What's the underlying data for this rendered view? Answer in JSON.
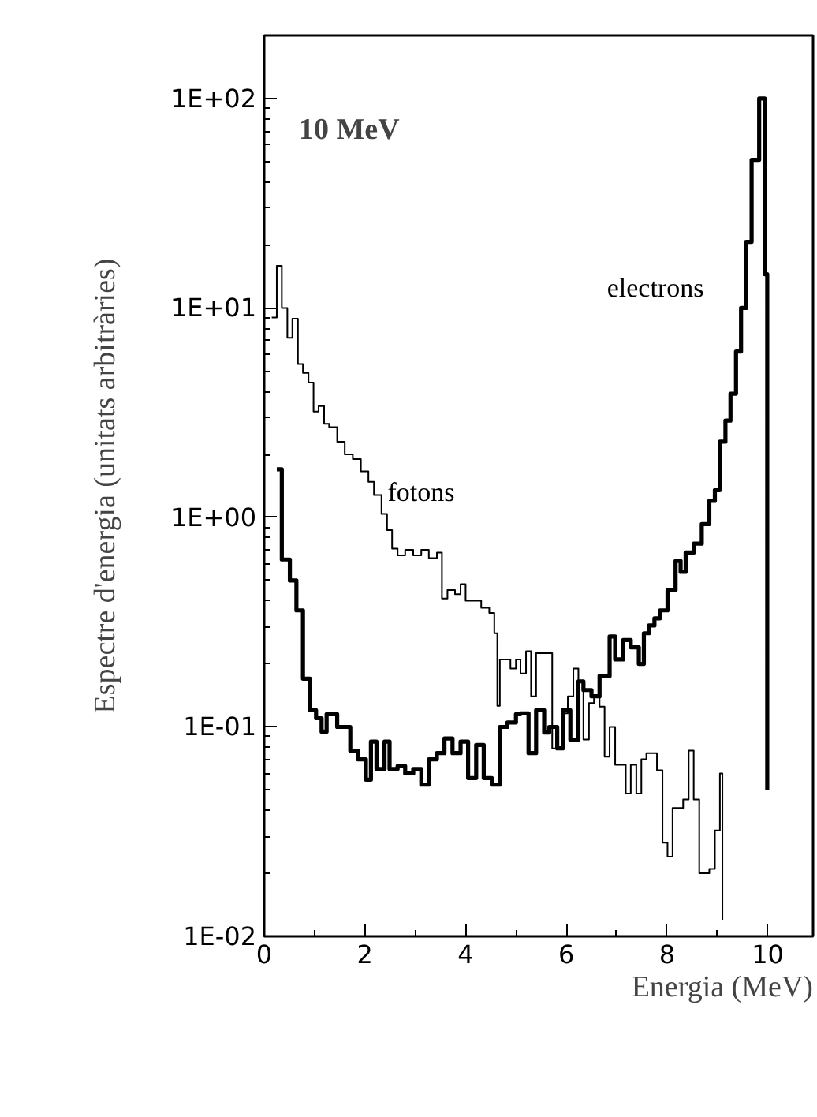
{
  "chart_data": {
    "type": "step",
    "ylabel": "Espectre d'energia (unitats arbitràries)",
    "xlabel": "Energia (MeV)",
    "annotations": [
      "10 MeV"
    ],
    "log": "y",
    "grid": false,
    "xlim": [
      0,
      10.9
    ],
    "ylim": [
      0.01,
      200
    ],
    "xticks": [
      0,
      {
        "value": 1,
        "label": null
      },
      2,
      {
        "value": 3,
        "label": null
      },
      4,
      {
        "value": 5,
        "label": null
      },
      6,
      {
        "value": 7,
        "label": null
      },
      8,
      {
        "value": 9,
        "label": null
      },
      10
    ],
    "yticks": [
      {
        "value": 0.01,
        "label": "1E-02"
      },
      {
        "value": 0.02,
        "label": null
      },
      {
        "value": 0.03,
        "label": null
      },
      {
        "value": 0.04,
        "label": null
      },
      {
        "value": 0.05,
        "label": null
      },
      {
        "value": 0.06,
        "label": null
      },
      {
        "value": 0.07,
        "label": null
      },
      {
        "value": 0.08,
        "label": null
      },
      {
        "value": 0.09,
        "label": null
      },
      {
        "value": 0.1,
        "label": "1E-01"
      },
      {
        "value": 0.2,
        "label": null
      },
      {
        "value": 0.3,
        "label": null
      },
      {
        "value": 0.4,
        "label": null
      },
      {
        "value": 0.5,
        "label": null
      },
      {
        "value": 0.6,
        "label": null
      },
      {
        "value": 0.7,
        "label": null
      },
      {
        "value": 0.8,
        "label": null
      },
      {
        "value": 0.9,
        "label": null
      },
      {
        "value": 1,
        "label": "1E+00"
      },
      {
        "value": 2,
        "label": null
      },
      {
        "value": 3,
        "label": null
      },
      {
        "value": 4,
        "label": null
      },
      {
        "value": 5,
        "label": null
      },
      {
        "value": 6,
        "label": null
      },
      {
        "value": 7,
        "label": null
      },
      {
        "value": 8,
        "label": null
      },
      {
        "value": 9,
        "label": null
      },
      {
        "value": 10,
        "label": "1E+01"
      },
      {
        "value": 20,
        "label": null
      },
      {
        "value": 30,
        "label": null
      },
      {
        "value": 40,
        "label": null
      },
      {
        "value": 50,
        "label": null
      },
      {
        "value": 60,
        "label": null
      },
      {
        "value": 70,
        "label": null
      },
      {
        "value": 80,
        "label": null
      },
      {
        "value": 90,
        "label": null
      },
      {
        "value": 100,
        "label": "1E+02"
      }
    ],
    "series": [
      {
        "name": "electrons",
        "color": "#000000",
        "x": [
          0.25,
          0.35,
          0.51,
          0.64,
          0.77,
          0.91,
          1.03,
          1.14,
          1.24,
          1.45,
          1.71,
          1.86,
          2.02,
          2.12,
          2.23,
          2.39,
          2.49,
          2.65,
          2.8,
          2.96,
          3.12,
          3.27,
          3.43,
          3.58,
          3.74,
          3.9,
          4.05,
          4.21,
          4.36,
          4.52,
          4.68,
          4.83,
          5.0,
          5.09,
          5.25,
          5.4,
          5.56,
          5.66,
          5.82,
          5.93,
          6.08,
          6.24,
          6.34,
          6.5,
          6.66,
          6.86,
          6.97,
          7.13,
          7.28,
          7.44,
          7.54,
          7.64,
          7.75,
          7.86,
          8.01,
          8.17,
          8.27,
          8.37,
          8.53,
          8.69,
          8.84,
          8.95,
          9.05,
          9.16,
          9.26,
          9.37,
          9.47,
          9.57,
          9.68,
          9.83,
          9.94,
          9.99
        ],
        "values": [
          1.7,
          0.63,
          0.5,
          0.36,
          0.17,
          0.12,
          0.11,
          0.095,
          0.115,
          0.1,
          0.077,
          0.07,
          0.056,
          0.085,
          0.063,
          0.085,
          0.063,
          0.065,
          0.06,
          0.063,
          0.053,
          0.07,
          0.075,
          0.088,
          0.075,
          0.085,
          0.057,
          0.082,
          0.057,
          0.053,
          0.1,
          0.105,
          0.115,
          0.116,
          0.075,
          0.12,
          0.094,
          0.1,
          0.079,
          0.12,
          0.087,
          0.165,
          0.15,
          0.14,
          0.175,
          0.27,
          0.21,
          0.26,
          0.24,
          0.2,
          0.28,
          0.305,
          0.33,
          0.36,
          0.45,
          0.62,
          0.55,
          0.68,
          0.75,
          0.93,
          1.2,
          1.35,
          2.3,
          2.9,
          3.9,
          6.2,
          10,
          20.7,
          51,
          100,
          14.5,
          0.05
        ]
      },
      {
        "name": "fotons",
        "color": "#000000",
        "x": [
          0.15,
          0.25,
          0.35,
          0.46,
          0.56,
          0.67,
          0.77,
          0.88,
          0.98,
          1.08,
          1.19,
          1.29,
          1.45,
          1.6,
          1.76,
          1.92,
          2.07,
          2.18,
          2.33,
          2.44,
          2.54,
          2.65,
          2.8,
          2.96,
          3.12,
          3.27,
          3.43,
          3.53,
          3.64,
          3.79,
          3.9,
          4.0,
          4.31,
          4.47,
          4.57,
          4.63,
          4.68,
          4.89,
          5.0,
          5.09,
          5.2,
          5.3,
          5.4,
          5.72,
          5.93,
          6.03,
          6.14,
          6.24,
          6.34,
          6.45,
          6.55,
          6.66,
          6.76,
          6.86,
          6.97,
          7.18,
          7.28,
          7.39,
          7.49,
          7.59,
          7.8,
          7.91,
          8.01,
          8.11,
          8.32,
          8.43,
          8.53,
          8.64,
          8.84,
          8.95,
          9.05,
          9.1
        ],
        "values": [
          9.0,
          15.9,
          10,
          7.2,
          8.9,
          5.4,
          4.9,
          4.4,
          3.2,
          3.4,
          2.8,
          2.7,
          2.3,
          2.0,
          1.9,
          1.66,
          1.48,
          1.28,
          1.04,
          0.87,
          0.71,
          0.66,
          0.7,
          0.66,
          0.7,
          0.64,
          0.68,
          0.41,
          0.45,
          0.43,
          0.48,
          0.4,
          0.37,
          0.35,
          0.28,
          0.126,
          0.21,
          0.19,
          0.21,
          0.18,
          0.23,
          0.14,
          0.225,
          0.079,
          0.116,
          0.14,
          0.19,
          0.165,
          0.087,
          0.13,
          0.14,
          0.125,
          0.072,
          0.1,
          0.066,
          0.048,
          0.066,
          0.048,
          0.07,
          0.075,
          0.062,
          0.028,
          0.024,
          0.041,
          0.045,
          0.077,
          0.045,
          0.02,
          0.021,
          0.032,
          0.06,
          0.012
        ]
      }
    ]
  }
}
